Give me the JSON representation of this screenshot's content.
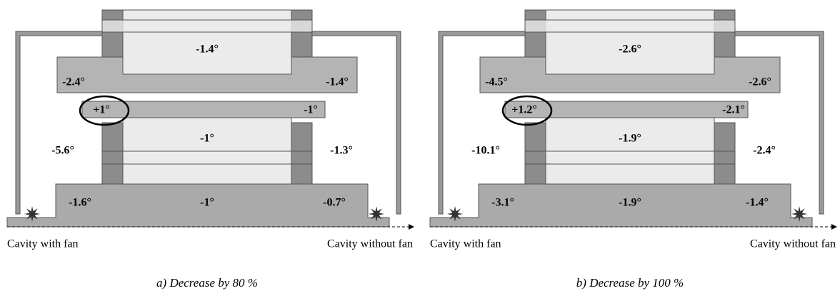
{
  "panels": [
    {
      "caption": "a) Decrease by 80 %",
      "left_label": "Cavity with fan",
      "right_label": "Cavity without fan",
      "labels": [
        "-1.4°",
        "-2.4°",
        "-1.4°",
        "+1°",
        "-1°",
        "-1°",
        "-5.6°",
        "-1.3°",
        "-1.6°",
        "-1°",
        "-0.7°"
      ]
    },
    {
      "caption": "b) Decrease by 100 %",
      "left_label": "Cavity with fan",
      "right_label": "Cavity without fan",
      "labels": [
        "-2.6°",
        "-4.5°",
        "-2.6°",
        "+1.2°",
        "-2.1°",
        "-1.9°",
        "-10.1°",
        "-2.4°",
        "-3.1°",
        "-1.9°",
        "-1.4°"
      ]
    }
  ]
}
